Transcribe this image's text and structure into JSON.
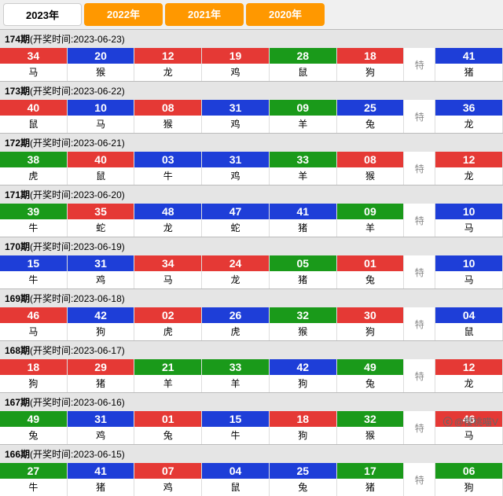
{
  "tabs": [
    {
      "label": "2023年",
      "active": true
    },
    {
      "label": "2022年",
      "active": false
    },
    {
      "label": "2021年",
      "active": false
    },
    {
      "label": "2020年",
      "active": false
    }
  ],
  "te_label": "特",
  "colors": {
    "red": "#e53935",
    "blue": "#1e3ed8",
    "green": "#1a9a1a"
  },
  "periods": [
    {
      "no": "174",
      "date": "2023-06-23",
      "cells": [
        {
          "n": "34",
          "z": "马",
          "c": "red"
        },
        {
          "n": "20",
          "z": "猴",
          "c": "blue"
        },
        {
          "n": "12",
          "z": "龙",
          "c": "red"
        },
        {
          "n": "19",
          "z": "鸡",
          "c": "red"
        },
        {
          "n": "28",
          "z": "鼠",
          "c": "green"
        },
        {
          "n": "18",
          "z": "狗",
          "c": "red"
        }
      ],
      "te": {
        "n": "41",
        "z": "猪",
        "c": "blue"
      }
    },
    {
      "no": "173",
      "date": "2023-06-22",
      "cells": [
        {
          "n": "40",
          "z": "鼠",
          "c": "red"
        },
        {
          "n": "10",
          "z": "马",
          "c": "blue"
        },
        {
          "n": "08",
          "z": "猴",
          "c": "red"
        },
        {
          "n": "31",
          "z": "鸡",
          "c": "blue"
        },
        {
          "n": "09",
          "z": "羊",
          "c": "green"
        },
        {
          "n": "25",
          "z": "兔",
          "c": "blue"
        }
      ],
      "te": {
        "n": "36",
        "z": "龙",
        "c": "blue"
      }
    },
    {
      "no": "172",
      "date": "2023-06-21",
      "cells": [
        {
          "n": "38",
          "z": "虎",
          "c": "green"
        },
        {
          "n": "40",
          "z": "鼠",
          "c": "red"
        },
        {
          "n": "03",
          "z": "牛",
          "c": "blue"
        },
        {
          "n": "31",
          "z": "鸡",
          "c": "blue"
        },
        {
          "n": "33",
          "z": "羊",
          "c": "green"
        },
        {
          "n": "08",
          "z": "猴",
          "c": "red"
        }
      ],
      "te": {
        "n": "12",
        "z": "龙",
        "c": "red"
      }
    },
    {
      "no": "171",
      "date": "2023-06-20",
      "cells": [
        {
          "n": "39",
          "z": "牛",
          "c": "green"
        },
        {
          "n": "35",
          "z": "蛇",
          "c": "red"
        },
        {
          "n": "48",
          "z": "龙",
          "c": "blue"
        },
        {
          "n": "47",
          "z": "蛇",
          "c": "blue"
        },
        {
          "n": "41",
          "z": "猪",
          "c": "blue"
        },
        {
          "n": "09",
          "z": "羊",
          "c": "green"
        }
      ],
      "te": {
        "n": "10",
        "z": "马",
        "c": "blue"
      }
    },
    {
      "no": "170",
      "date": "2023-06-19",
      "cells": [
        {
          "n": "15",
          "z": "牛",
          "c": "blue"
        },
        {
          "n": "31",
          "z": "鸡",
          "c": "blue"
        },
        {
          "n": "34",
          "z": "马",
          "c": "red"
        },
        {
          "n": "24",
          "z": "龙",
          "c": "red"
        },
        {
          "n": "05",
          "z": "猪",
          "c": "green"
        },
        {
          "n": "01",
          "z": "兔",
          "c": "red"
        }
      ],
      "te": {
        "n": "10",
        "z": "马",
        "c": "blue"
      }
    },
    {
      "no": "169",
      "date": "2023-06-18",
      "cells": [
        {
          "n": "46",
          "z": "马",
          "c": "red"
        },
        {
          "n": "42",
          "z": "狗",
          "c": "blue"
        },
        {
          "n": "02",
          "z": "虎",
          "c": "red"
        },
        {
          "n": "26",
          "z": "虎",
          "c": "blue"
        },
        {
          "n": "32",
          "z": "猴",
          "c": "green"
        },
        {
          "n": "30",
          "z": "狗",
          "c": "red"
        }
      ],
      "te": {
        "n": "04",
        "z": "鼠",
        "c": "blue"
      }
    },
    {
      "no": "168",
      "date": "2023-06-17",
      "cells": [
        {
          "n": "18",
          "z": "狗",
          "c": "red"
        },
        {
          "n": "29",
          "z": "猪",
          "c": "red"
        },
        {
          "n": "21",
          "z": "羊",
          "c": "green"
        },
        {
          "n": "33",
          "z": "羊",
          "c": "green"
        },
        {
          "n": "42",
          "z": "狗",
          "c": "blue"
        },
        {
          "n": "49",
          "z": "兔",
          "c": "green"
        }
      ],
      "te": {
        "n": "12",
        "z": "龙",
        "c": "red"
      }
    },
    {
      "no": "167",
      "date": "2023-06-16",
      "cells": [
        {
          "n": "49",
          "z": "兔",
          "c": "green"
        },
        {
          "n": "31",
          "z": "鸡",
          "c": "blue"
        },
        {
          "n": "01",
          "z": "兔",
          "c": "red"
        },
        {
          "n": "15",
          "z": "牛",
          "c": "blue"
        },
        {
          "n": "18",
          "z": "狗",
          "c": "red"
        },
        {
          "n": "32",
          "z": "猴",
          "c": "green"
        }
      ],
      "te": {
        "n": "46",
        "z": "马",
        "c": "red"
      }
    },
    {
      "no": "166",
      "date": "2023-06-15",
      "cells": [
        {
          "n": "27",
          "z": "牛",
          "c": "green"
        },
        {
          "n": "41",
          "z": "猪",
          "c": "blue"
        },
        {
          "n": "07",
          "z": "鸡",
          "c": "red"
        },
        {
          "n": "04",
          "z": "鼠",
          "c": "blue"
        },
        {
          "n": "25",
          "z": "兔",
          "c": "blue"
        },
        {
          "n": "17",
          "z": "猪",
          "c": "green"
        }
      ],
      "te": {
        "n": "06",
        "z": "狗",
        "c": "green"
      }
    }
  ],
  "watermark": "@樱桃喵V"
}
